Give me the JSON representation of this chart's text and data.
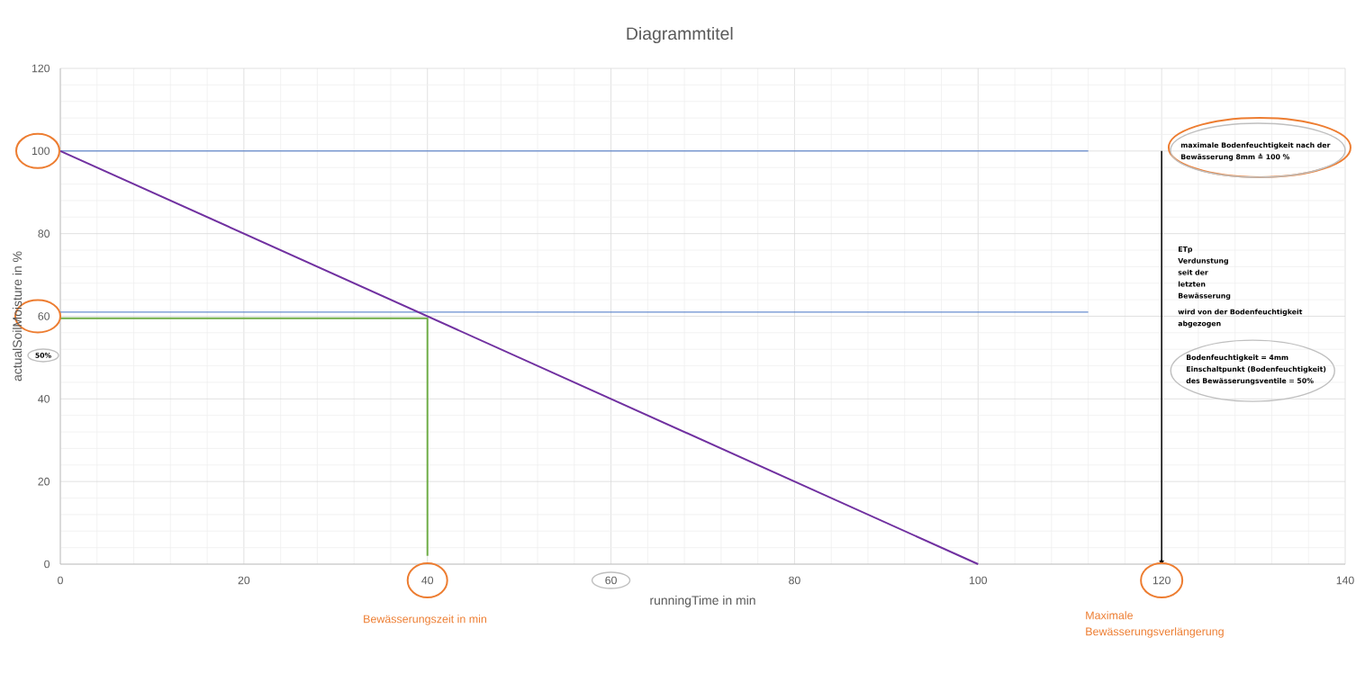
{
  "chart_data": {
    "type": "line",
    "title": "Diagrammtitel",
    "xlabel": "runningTime in min",
    "ylabel": "actualSoilMoisture in %",
    "series": [
      {
        "color": "#4472c4",
        "x": [
          0,
          112
        ],
        "values": [
          100,
          100
        ]
      },
      {
        "color": "#4472c4",
        "x": [
          0,
          112
        ],
        "values": [
          61,
          61
        ]
      },
      {
        "color": "#70ad47",
        "x": [
          0,
          40,
          40
        ],
        "values": [
          59.5,
          59.5,
          2
        ]
      },
      {
        "color": "#7030a0",
        "x": [
          0,
          100
        ],
        "values": [
          100,
          0
        ]
      },
      {
        "color": "#000000",
        "x": [
          120,
          120
        ],
        "values": [
          100,
          0
        ]
      }
    ],
    "xlim": [
      0,
      140
    ],
    "ylim": [
      0,
      120
    ],
    "xticks": [
      0,
      20,
      40,
      60,
      80,
      100,
      120,
      140
    ],
    "yticks": [
      0,
      20,
      40,
      60,
      80,
      100,
      120
    ],
    "grid": true,
    "annotations": [
      "maximale Bodenfeuchtigkeit nach der Bewässerung 8mm ≙ 100 %",
      "ETp Verdunstung seit der letzten Bewässerung",
      "wird von der Bodenfeuchtigkeit abgezogen",
      "50%",
      "Bodenfeuchtigkeit = 4mm Einschaltpunkt (Bodenfeuchtigkeit) des Bewässerungsventile = 50%",
      "Bewässerungszeit in min",
      "Maximale Bewässerungsverlängerung"
    ]
  }
}
